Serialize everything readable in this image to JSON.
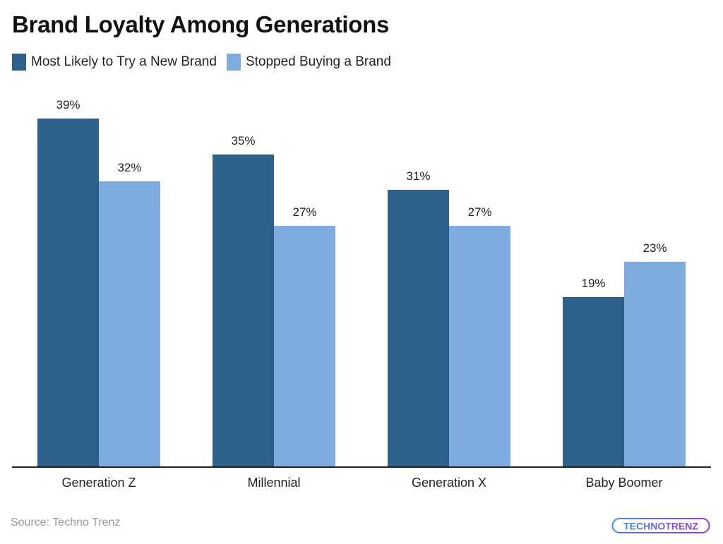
{
  "chart_data": {
    "type": "bar",
    "title": "Brand Loyalty Among Generations",
    "categories": [
      "Generation Z",
      "Millennial",
      "Generation X",
      "Baby Boomer"
    ],
    "series": [
      {
        "name": "Most Likely to Try a New Brand",
        "color": "#2d5f8b",
        "values": [
          39,
          35,
          31,
          19
        ]
      },
      {
        "name": "Stopped Buying a Brand",
        "color": "#7facdf",
        "values": [
          32,
          27,
          27,
          23
        ]
      }
    ],
    "value_suffix": "%",
    "xlabel": "",
    "ylabel": "",
    "ylim": [
      0,
      39
    ],
    "grid": false,
    "legend_position": "top-left"
  },
  "header": {
    "title": "Brand Loyalty Among Generations"
  },
  "legend": [
    {
      "label": "Most Likely to Try a New Brand",
      "color": "#2d5f8b"
    },
    {
      "label": "Stopped Buying a Brand",
      "color": "#7facdf"
    }
  ],
  "labels": {
    "g0": {
      "cat": "Generation Z",
      "a": "39%",
      "b": "32%"
    },
    "g1": {
      "cat": "Millennial",
      "a": "35%",
      "b": "27%"
    },
    "g2": {
      "cat": "Generation X",
      "a": "31%",
      "b": "27%"
    },
    "g3": {
      "cat": "Baby Boomer",
      "a": "19%",
      "b": "23%"
    }
  },
  "footer": {
    "source": "Source: Techno Trenz",
    "logo_text": "TECHNOTRENZ"
  }
}
